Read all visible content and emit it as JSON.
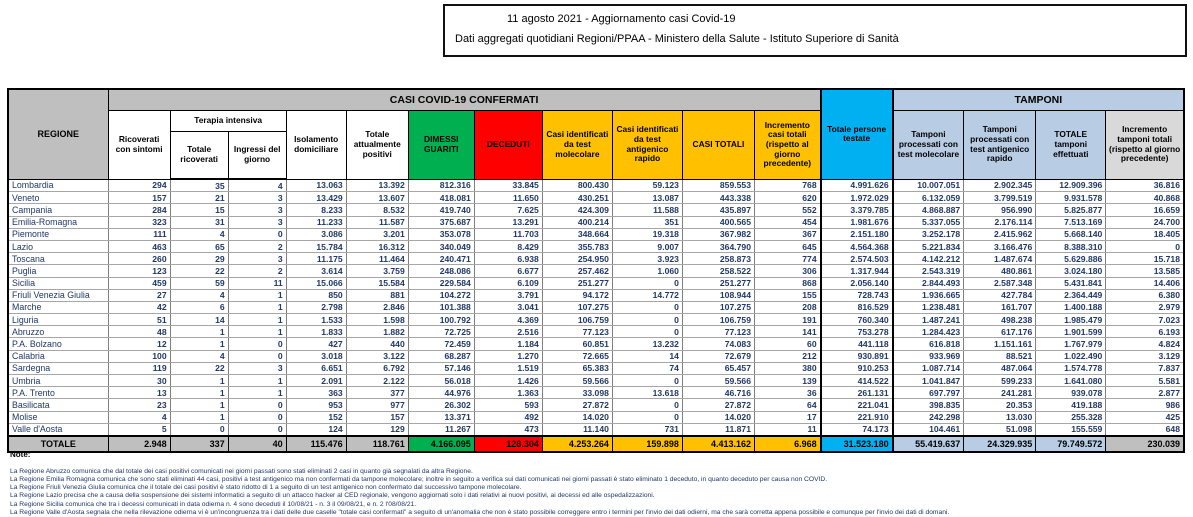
{
  "title": {
    "line1": "11 agosto 2021 - Aggiornamento casi Covid-19",
    "line2": "Dati aggregati quotidiani Regioni/PPAA - Ministero della Salute - Istituto Superiore di Sanità"
  },
  "colors": {
    "green": "#00B050",
    "red": "#FF0000",
    "amber": "#FFC000",
    "cyan": "#00B0F0",
    "light_blue": "#B8CCE4",
    "gray": "#BFBFBF",
    "light_gray": "#D9D9D9"
  },
  "table": {
    "banners": {
      "casi": "CASI COVID-19 CONFERMATI",
      "tamponi": "TAMPONI"
    },
    "headers": {
      "regione": "REGIONE",
      "ricoverati": "Ricoverati con sintomi",
      "terapia_intensiva": "Terapia intensiva",
      "ti_totale": "Totale ricoverati",
      "ti_ingressi": "Ingressi del giorno",
      "isolamento": "Isolamento domiciliare",
      "attualmente_positivi": "Totale attualmente positivi",
      "dimessi": "DIMESSI GUARITI",
      "deceduti": "DECEDUTI",
      "casi_molecolare": "Casi identificati da test molecolare",
      "casi_antigenico": "Casi identificati da test antigenico rapido",
      "casi_totali": "CASI TOTALI",
      "incremento_casi": "Incremento casi totali (rispetto al giorno precedente)",
      "persone_testate": "Totale persone testate",
      "tamponi_molecolare": "Tamponi processati con test molecolare",
      "tamponi_antigenico": "Tamponi processati con test antigenico rapido",
      "tamponi_totale": "TOTALE tamponi effettuati",
      "incremento_tamponi": "Incremento tamponi totali (rispetto al giorno precedente)"
    },
    "rows": [
      [
        "Lombardia",
        "294",
        "35",
        "4",
        "13.063",
        "13.392",
        "812.316",
        "33.845",
        "800.430",
        "59.123",
        "859.553",
        "768",
        "4.991.626",
        "10.007.051",
        "2.902.345",
        "12.909.396",
        "36.816"
      ],
      [
        "Veneto",
        "157",
        "21",
        "3",
        "13.429",
        "13.607",
        "418.081",
        "11.650",
        "430.251",
        "13.087",
        "443.338",
        "620",
        "1.972.029",
        "6.132.059",
        "3.799.519",
        "9.931.578",
        "40.868"
      ],
      [
        "Campania",
        "284",
        "15",
        "3",
        "8.233",
        "8.532",
        "419.740",
        "7.625",
        "424.309",
        "11.588",
        "435.897",
        "552",
        "3.379.785",
        "4.868.887",
        "956.990",
        "5.825.877",
        "16.659"
      ],
      [
        "Emilia-Romagna",
        "323",
        "31",
        "3",
        "11.233",
        "11.587",
        "375.687",
        "13.291",
        "400.214",
        "351",
        "400.565",
        "454",
        "1.981.676",
        "5.337.055",
        "2.176.114",
        "7.513.169",
        "24.700"
      ],
      [
        "Piemonte",
        "111",
        "4",
        "0",
        "3.086",
        "3.201",
        "353.078",
        "11.703",
        "348.664",
        "19.318",
        "367.982",
        "367",
        "2.151.180",
        "3.252.178",
        "2.415.962",
        "5.668.140",
        "18.405"
      ],
      [
        "Lazio",
        "463",
        "65",
        "2",
        "15.784",
        "16.312",
        "340.049",
        "8.429",
        "355.783",
        "9.007",
        "364.790",
        "645",
        "4.564.368",
        "5.221.834",
        "3.166.476",
        "8.388.310",
        "0"
      ],
      [
        "Toscana",
        "260",
        "29",
        "3",
        "11.175",
        "11.464",
        "240.471",
        "6.938",
        "254.950",
        "3.923",
        "258.873",
        "774",
        "2.574.503",
        "4.142.212",
        "1.487.674",
        "5.629.886",
        "15.718"
      ],
      [
        "Puglia",
        "123",
        "22",
        "2",
        "3.614",
        "3.759",
        "248.086",
        "6.677",
        "257.462",
        "1.060",
        "258.522",
        "306",
        "1.317.944",
        "2.543.319",
        "480.861",
        "3.024.180",
        "13.585"
      ],
      [
        "Sicilia",
        "459",
        "59",
        "11",
        "15.066",
        "15.584",
        "229.584",
        "6.109",
        "251.277",
        "0",
        "251.277",
        "868",
        "2.056.140",
        "2.844.493",
        "2.587.348",
        "5.431.841",
        "14.406"
      ],
      [
        "Friuli Venezia Giulia",
        "27",
        "4",
        "1",
        "850",
        "881",
        "104.272",
        "3.791",
        "94.172",
        "14.772",
        "108.944",
        "155",
        "728.743",
        "1.936.665",
        "427.784",
        "2.364.449",
        "6.380"
      ],
      [
        "Marche",
        "42",
        "6",
        "1",
        "2.798",
        "2.846",
        "101.388",
        "3.041",
        "107.275",
        "0",
        "107.275",
        "208",
        "816.529",
        "1.238.481",
        "161.707",
        "1.400.188",
        "2.979"
      ],
      [
        "Liguria",
        "51",
        "14",
        "1",
        "1.533",
        "1.598",
        "100.792",
        "4.369",
        "106.759",
        "0",
        "106.759",
        "191",
        "760.340",
        "1.487.241",
        "498.238",
        "1.985.479",
        "7.023"
      ],
      [
        "Abruzzo",
        "48",
        "1",
        "1",
        "1.833",
        "1.882",
        "72.725",
        "2.516",
        "77.123",
        "0",
        "77.123",
        "141",
        "753.278",
        "1.284.423",
        "617.176",
        "1.901.599",
        "6.193"
      ],
      [
        "P.A. Bolzano",
        "12",
        "1",
        "0",
        "427",
        "440",
        "72.459",
        "1.184",
        "60.851",
        "13.232",
        "74.083",
        "60",
        "441.118",
        "616.818",
        "1.151.161",
        "1.767.979",
        "4.824"
      ],
      [
        "Calabria",
        "100",
        "4",
        "0",
        "3.018",
        "3.122",
        "68.287",
        "1.270",
        "72.665",
        "14",
        "72.679",
        "212",
        "930.891",
        "933.969",
        "88.521",
        "1.022.490",
        "3.129"
      ],
      [
        "Sardegna",
        "119",
        "22",
        "3",
        "6.651",
        "6.792",
        "57.146",
        "1.519",
        "65.383",
        "74",
        "65.457",
        "380",
        "910.253",
        "1.087.714",
        "487.064",
        "1.574.778",
        "7.837"
      ],
      [
        "Umbria",
        "30",
        "1",
        "1",
        "2.091",
        "2.122",
        "56.018",
        "1.426",
        "59.566",
        "0",
        "59.566",
        "139",
        "414.522",
        "1.041.847",
        "599.233",
        "1.641.080",
        "5.581"
      ],
      [
        "P.A. Trento",
        "13",
        "1",
        "1",
        "363",
        "377",
        "44.976",
        "1.363",
        "33.098",
        "13.618",
        "46.716",
        "36",
        "261.131",
        "697.797",
        "241.281",
        "939.078",
        "2.877"
      ],
      [
        "Basilicata",
        "23",
        "1",
        "0",
        "953",
        "977",
        "26.302",
        "593",
        "27.872",
        "0",
        "27.872",
        "64",
        "221.041",
        "398.835",
        "20.353",
        "419.188",
        "986"
      ],
      [
        "Molise",
        "4",
        "1",
        "0",
        "152",
        "157",
        "13.371",
        "492",
        "14.020",
        "0",
        "14.020",
        "17",
        "221.910",
        "242.298",
        "13.030",
        "255.328",
        "425"
      ],
      [
        "Valle d'Aosta",
        "5",
        "0",
        "0",
        "124",
        "129",
        "11.267",
        "473",
        "11.140",
        "731",
        "11.871",
        "11",
        "74.173",
        "104.461",
        "51.098",
        "155.559",
        "648"
      ]
    ],
    "totale": [
      "TOTALE",
      "2.948",
      "337",
      "40",
      "115.476",
      "118.761",
      "4.166.095",
      "128.304",
      "4.253.264",
      "159.898",
      "4.413.162",
      "6.968",
      "31.523.180",
      "55.419.637",
      "24.329.935",
      "79.749.572",
      "230.039"
    ]
  },
  "notes": {
    "label": "Note:",
    "items": [
      "La Regione Abruzzo comunica che dal totale dei casi positivi comunicati nei giorni passati sono stati eliminati 2 casi in quanto già segnalati da altra Regione.",
      "La Regione Emilia Romagna comunica che sono stati eliminati 44 casi, positivi a test antigenico ma non confermati da tampone molecolare; inoltre in seguito a verifica sui dati comunicati nei giorni passati è stato eliminato 1 deceduto, in quanto deceduto per causa non COVID.",
      "La Regione Friuli Venezia Giulia comunica che il totale dei casi positivi è stato ridotto di 1 a seguito di un test antigenico non confermato dal successivo tampone molecolare.",
      "La Regione Lazio precisa che a causa della sospensione dei sistemi informatici a seguito di un attacco hacker al CED regionale, vengono aggiornati solo i dati relativi ai nuovi positivi, ai decessi ed  alle ospedalizzazioni.",
      "La Regione Sicilia comunica che tra i decessi comunicati in data odierna n. 4 sono deceduti il 10/08/21 - n. 3 il 09/08/21, e n. 2 l'08/08/21.",
      "La Regione Valle d'Aosta segnala che nella rilevazione odierna vi è un'incongruenza tra i dati delle due caselle \"totale casi confermati\" a seguito di un'anomalia che non è stato possibile correggere entro i termini per l'invio dei dati odierni, ma che sarà corretta appena possibile e comunque per l'invio dei dati di domani."
    ]
  }
}
